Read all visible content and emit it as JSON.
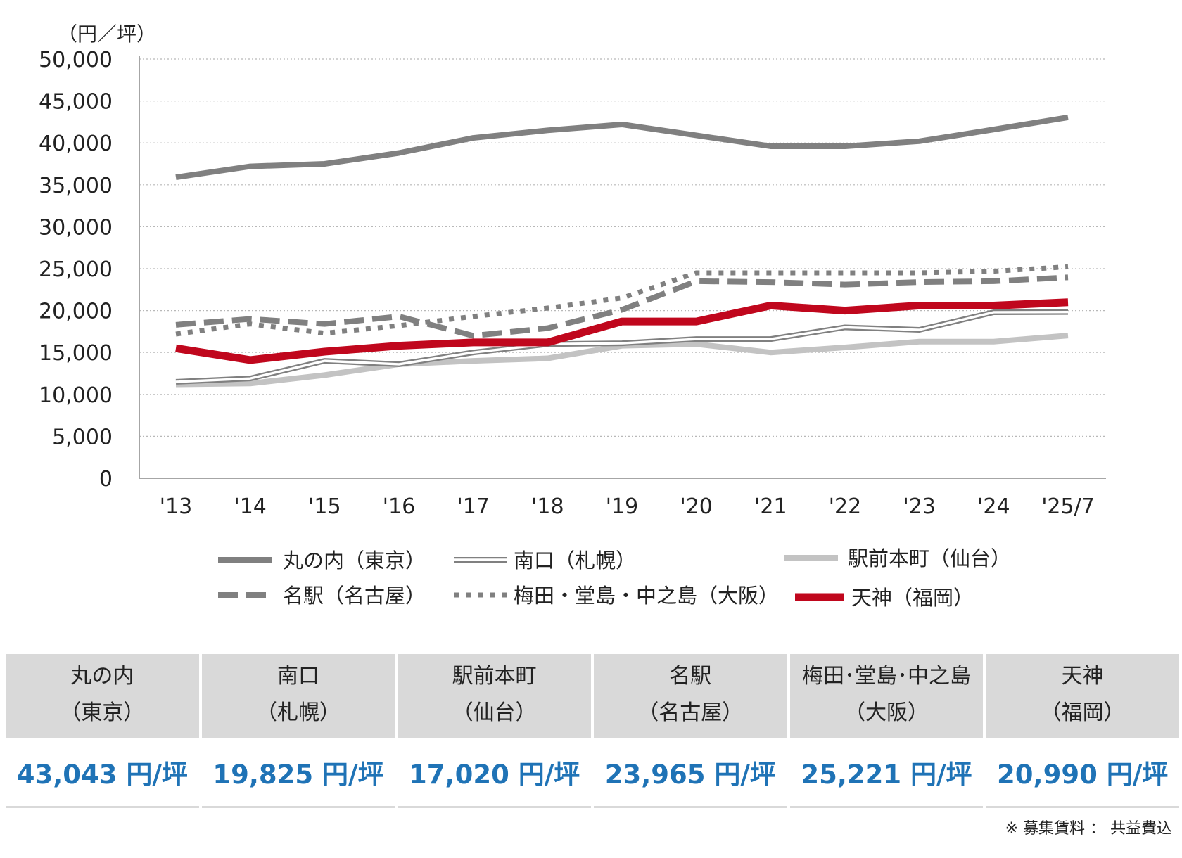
{
  "chart_data": {
    "type": "line",
    "unit_label": "（円／坪）",
    "x": [
      "'13",
      "'14",
      "'15",
      "'16",
      "'17",
      "'18",
      "'19",
      "'20",
      "'21",
      "'22",
      "'23",
      "'24",
      "'25/7"
    ],
    "ylim": [
      0,
      50000
    ],
    "yticks": [
      "0",
      "5,000",
      "10,000",
      "15,000",
      "20,000",
      "25,000",
      "30,000",
      "35,000",
      "40,000",
      "45,000",
      "50,000"
    ],
    "grid": "horizontal-dotted",
    "legend_position": "bottom",
    "series": [
      {
        "name": "丸の内（東京）",
        "style": "thick-solid",
        "color": "#808080",
        "values": [
          35900,
          37200,
          37500,
          38800,
          40600,
          41500,
          42200,
          40900,
          39600,
          39600,
          40200,
          41600,
          43043
        ]
      },
      {
        "name": "南口（札幌）",
        "style": "double",
        "color": "#808080",
        "values": [
          11500,
          11900,
          14000,
          13600,
          15000,
          16000,
          16100,
          16600,
          16600,
          18000,
          17700,
          19800,
          19825
        ]
      },
      {
        "name": "駅前本町（仙台）",
        "style": "thick-solid",
        "color": "#c3c3c3",
        "values": [
          11200,
          11300,
          12300,
          13600,
          14000,
          14300,
          15800,
          16000,
          15000,
          15600,
          16300,
          16300,
          17020
        ]
      },
      {
        "name": "名駅（名古屋）",
        "style": "dashed",
        "color": "#808080",
        "values": [
          18300,
          19000,
          18400,
          19300,
          17000,
          17900,
          20100,
          23500,
          23400,
          23100,
          23400,
          23500,
          23965
        ]
      },
      {
        "name": "梅田・堂島・中之島（大阪）",
        "style": "dotted",
        "color": "#808080",
        "values": [
          17200,
          18400,
          17300,
          18200,
          19300,
          20300,
          21500,
          24500,
          24500,
          24500,
          24500,
          24700,
          25221
        ]
      },
      {
        "name": "天神（福岡）",
        "style": "thick-solid",
        "color": "#c0071d",
        "values": [
          15500,
          14100,
          15100,
          15800,
          16200,
          16200,
          18700,
          18700,
          20600,
          20000,
          20600,
          20600,
          20990
        ]
      }
    ]
  },
  "table": {
    "columns": [
      {
        "name1": "丸の内",
        "name2": "（東京）",
        "value": "43,043 円/坪"
      },
      {
        "name1": "南口",
        "name2": "（札幌）",
        "value": "19,825 円/坪"
      },
      {
        "name1": "駅前本町",
        "name2": "（仙台）",
        "value": "17,020 円/坪"
      },
      {
        "name1": "名駅",
        "name2": "（名古屋）",
        "value": "23,965 円/坪"
      },
      {
        "name1": "梅田･堂島･中之島",
        "name2": "（大阪）",
        "value": "25,221 円/坪"
      },
      {
        "name1": "天神",
        "name2": "（福岡）",
        "value": "20,990 円/坪"
      }
    ]
  },
  "note": "※ 募集賃料 ： 共益費込"
}
